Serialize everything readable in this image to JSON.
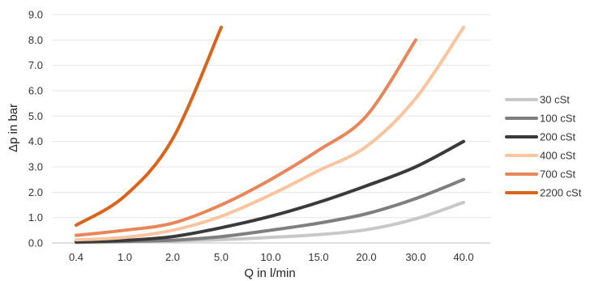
{
  "chart_data": {
    "type": "line",
    "xlabel": "Q in l/min",
    "ylabel": "Δp in bar",
    "categories": [
      "0.4",
      "1.0",
      "2.0",
      "5.0",
      "10.0",
      "15.0",
      "20.0",
      "30.0",
      "40.0"
    ],
    "yticks": [
      "0.0",
      "1.0",
      "2.0",
      "3.0",
      "4.0",
      "5.0",
      "6.0",
      "7.0",
      "8.0",
      "9.0"
    ],
    "ylim": [
      0,
      9
    ],
    "grid": "horizontal",
    "legend_position": "right",
    "series": [
      {
        "name": "30 cSt",
        "color": "#c8c8c8",
        "points": [
          [
            0.4,
            0.02
          ],
          [
            1.0,
            0.04
          ],
          [
            2.0,
            0.08
          ],
          [
            5.0,
            0.13
          ],
          [
            10.0,
            0.22
          ],
          [
            15.0,
            0.33
          ],
          [
            20.0,
            0.52
          ],
          [
            30.0,
            0.95
          ],
          [
            40.0,
            1.6
          ]
        ]
      },
      {
        "name": "100 cSt",
        "color": "#7f7f7f",
        "points": [
          [
            0.4,
            0.03
          ],
          [
            1.0,
            0.06
          ],
          [
            2.0,
            0.11
          ],
          [
            5.0,
            0.25
          ],
          [
            10.0,
            0.5
          ],
          [
            15.0,
            0.78
          ],
          [
            20.0,
            1.15
          ],
          [
            30.0,
            1.75
          ],
          [
            40.0,
            2.5
          ]
        ]
      },
      {
        "name": "200 cSt",
        "color": "#3a3a3a",
        "points": [
          [
            0.4,
            0.04
          ],
          [
            1.0,
            0.1
          ],
          [
            2.0,
            0.25
          ],
          [
            5.0,
            0.6
          ],
          [
            10.0,
            1.05
          ],
          [
            15.0,
            1.6
          ],
          [
            20.0,
            2.25
          ],
          [
            30.0,
            3.0
          ],
          [
            40.0,
            4.0
          ]
        ]
      },
      {
        "name": "400 cSt",
        "color": "#f9c49e",
        "points": [
          [
            0.4,
            0.12
          ],
          [
            1.0,
            0.22
          ],
          [
            2.0,
            0.5
          ],
          [
            5.0,
            1.05
          ],
          [
            10.0,
            1.9
          ],
          [
            15.0,
            2.85
          ],
          [
            20.0,
            3.8
          ],
          [
            30.0,
            5.7
          ],
          [
            40.0,
            8.5
          ]
        ]
      },
      {
        "name": "700 cSt",
        "color": "#e8865a",
        "points": [
          [
            0.4,
            0.3
          ],
          [
            1.0,
            0.5
          ],
          [
            2.0,
            0.78
          ],
          [
            5.0,
            1.5
          ],
          [
            10.0,
            2.5
          ],
          [
            15.0,
            3.65
          ],
          [
            20.0,
            5.0
          ],
          [
            30.0,
            8.0
          ]
        ]
      },
      {
        "name": "2200 cSt",
        "color": "#d9641c",
        "points": [
          [
            0.4,
            0.7
          ],
          [
            1.0,
            1.85
          ],
          [
            2.0,
            4.1
          ],
          [
            5.0,
            8.5
          ]
        ]
      }
    ]
  }
}
